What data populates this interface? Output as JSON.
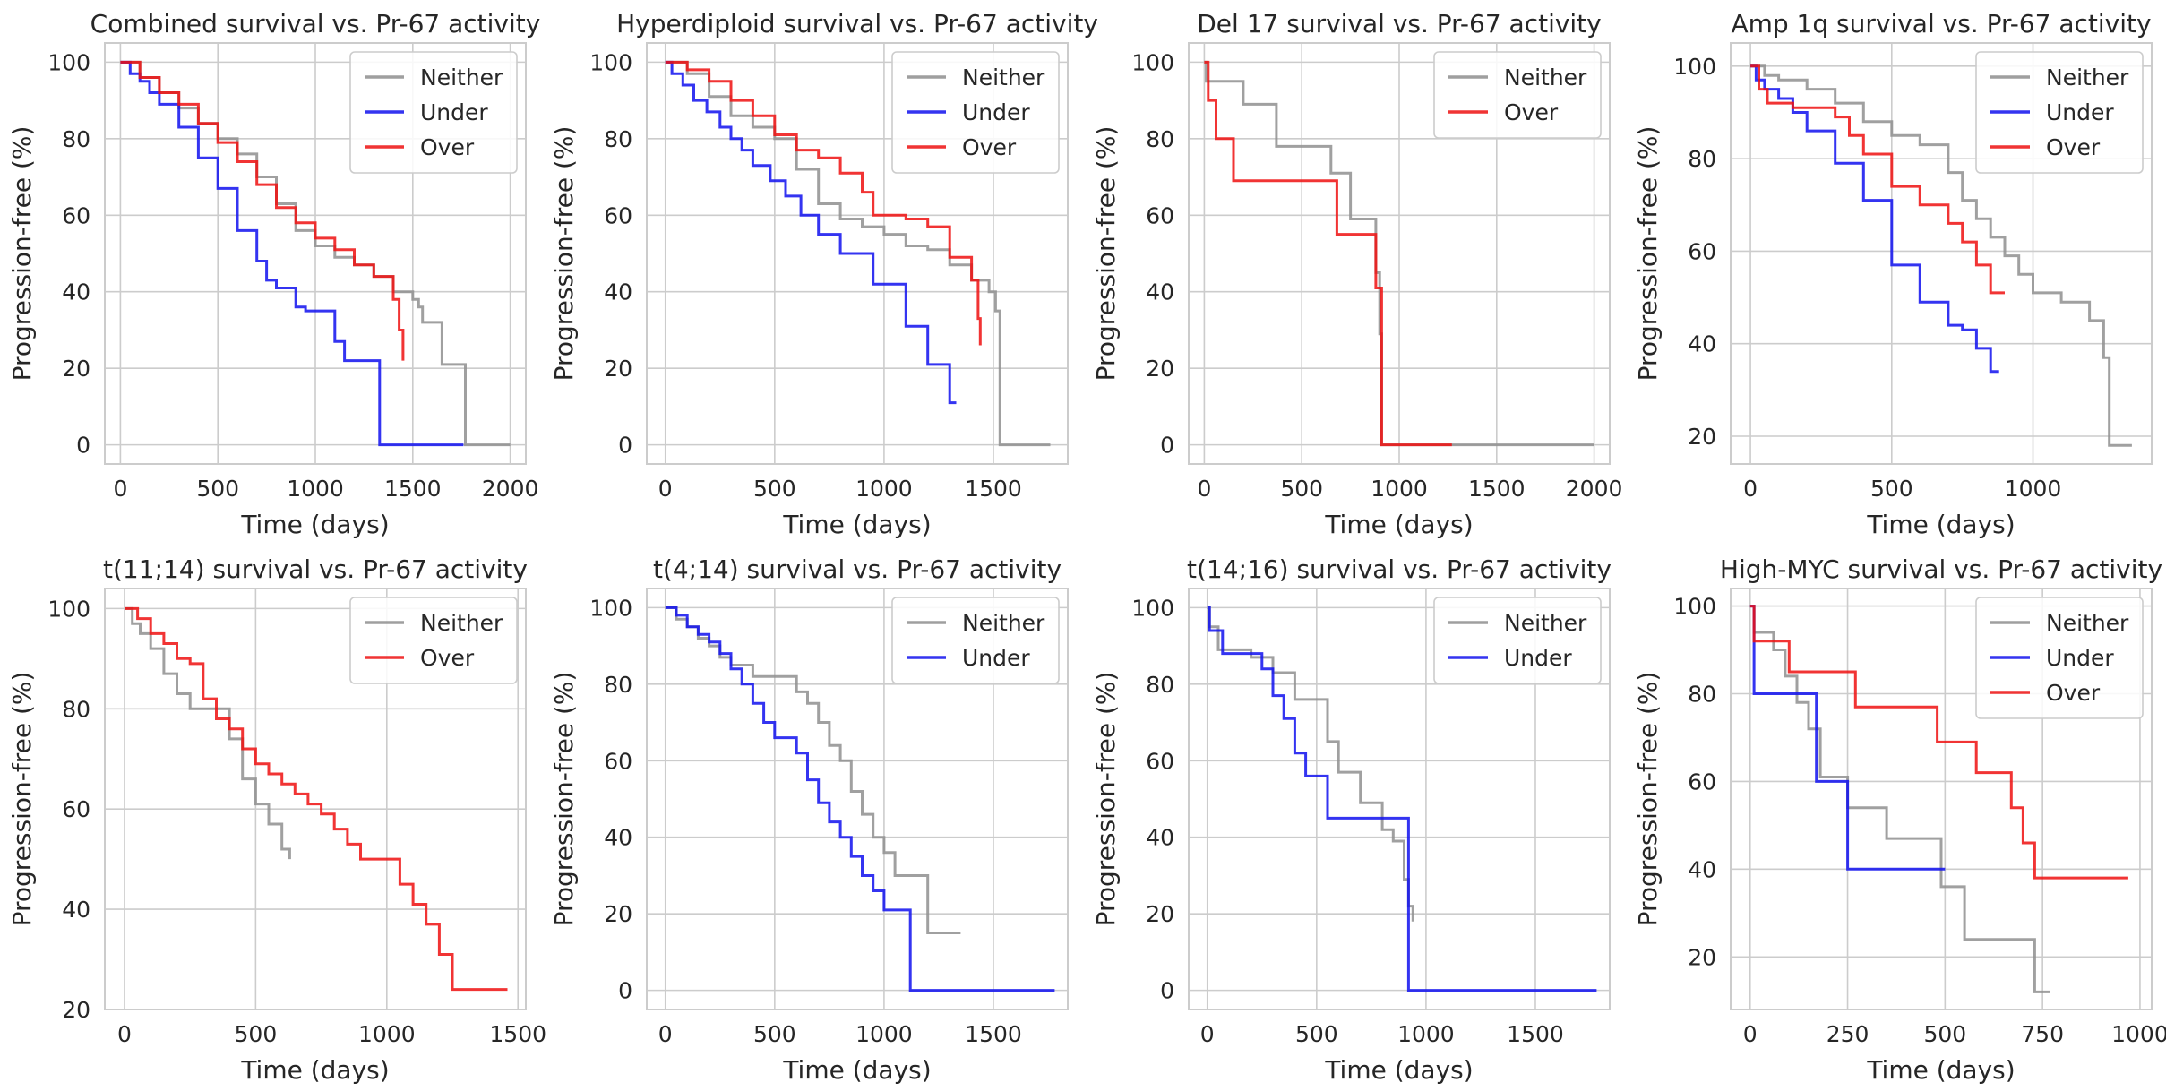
{
  "colors": {
    "Neither": "#8f8f8f",
    "Under": "#1111ee",
    "Over": "#ee1111"
  },
  "chart_data": [
    {
      "type": "line",
      "title": "Combined survival vs. Pr-67 activity",
      "xlabel": "Time (days)",
      "ylabel": "Progression-free (%)",
      "xlim": [
        -80,
        2080
      ],
      "ylim": [
        -5,
        105
      ],
      "xticks": [
        0,
        500,
        1000,
        1500,
        2000
      ],
      "yticks": [
        0,
        20,
        40,
        60,
        80,
        100
      ],
      "grid": true,
      "legend": "top-right",
      "series": [
        {
          "name": "Neither",
          "x": [
            0,
            100,
            200,
            300,
            400,
            500,
            600,
            700,
            800,
            900,
            1000,
            1100,
            1200,
            1300,
            1400,
            1500,
            1530,
            1550,
            1630,
            1650,
            1760,
            1770,
            2000
          ],
          "y": [
            100,
            96,
            92,
            88,
            84,
            80,
            76,
            70,
            63,
            56,
            52,
            49,
            47,
            44,
            40,
            38,
            36,
            32,
            32,
            21,
            21,
            0,
            0
          ]
        },
        {
          "name": "Under",
          "x": [
            0,
            50,
            100,
            150,
            200,
            300,
            400,
            500,
            600,
            700,
            750,
            800,
            900,
            950,
            1000,
            1050,
            1100,
            1150,
            1200,
            1250,
            1300,
            1320,
            1330,
            1760
          ],
          "y": [
            100,
            97,
            95,
            92,
            89,
            83,
            75,
            67,
            56,
            48,
            43,
            41,
            36,
            35,
            35,
            35,
            27,
            22,
            22,
            22,
            22,
            22,
            0,
            0
          ]
        },
        {
          "name": "Over",
          "x": [
            0,
            100,
            200,
            300,
            400,
            500,
            600,
            700,
            800,
            900,
            1000,
            1100,
            1200,
            1300,
            1400,
            1430,
            1450
          ],
          "y": [
            100,
            96,
            92,
            89,
            84,
            79,
            74,
            68,
            62,
            58,
            54,
            51,
            47,
            44,
            38,
            30,
            22
          ]
        }
      ]
    },
    {
      "type": "line",
      "title": "Hyperdiploid survival vs. Pr-67 activity",
      "xlabel": "Time (days)",
      "ylabel": "Progression-free (%)",
      "xlim": [
        -85,
        1840
      ],
      "ylim": [
        -5,
        105
      ],
      "xticks": [
        0,
        500,
        1000,
        1500
      ],
      "yticks": [
        0,
        20,
        40,
        60,
        80,
        100
      ],
      "grid": true,
      "legend": "top-right",
      "series": [
        {
          "name": "Neither",
          "x": [
            0,
            100,
            200,
            300,
            400,
            500,
            600,
            700,
            800,
            900,
            1000,
            1100,
            1200,
            1300,
            1400,
            1480,
            1500,
            1510,
            1530,
            1760
          ],
          "y": [
            100,
            97,
            91,
            86,
            83,
            80,
            72,
            63,
            59,
            57,
            55,
            52,
            51,
            47,
            43,
            40,
            40,
            35,
            0,
            0
          ]
        },
        {
          "name": "Under",
          "x": [
            0,
            30,
            80,
            130,
            190,
            250,
            300,
            350,
            400,
            480,
            550,
            620,
            700,
            800,
            950,
            1100,
            1200,
            1300,
            1330
          ],
          "y": [
            100,
            97,
            94,
            90,
            87,
            83,
            80,
            77,
            73,
            69,
            65,
            60,
            55,
            50,
            42,
            31,
            21,
            11,
            11
          ]
        },
        {
          "name": "Over",
          "x": [
            0,
            100,
            200,
            300,
            400,
            500,
            600,
            700,
            800,
            900,
            950,
            1000,
            1100,
            1200,
            1300,
            1400,
            1430,
            1440
          ],
          "y": [
            100,
            98,
            95,
            90,
            86,
            81,
            77,
            75,
            71,
            66,
            60,
            60,
            59,
            57,
            49,
            43,
            33,
            26
          ]
        }
      ]
    },
    {
      "type": "line",
      "title": "Del 17 survival vs. Pr-67 activity",
      "xlabel": "Time (days)",
      "ylabel": "Progression-free (%)",
      "xlim": [
        -80,
        2080
      ],
      "ylim": [
        -5,
        105
      ],
      "xticks": [
        0,
        500,
        1000,
        1500,
        2000
      ],
      "yticks": [
        0,
        20,
        40,
        60,
        80,
        100
      ],
      "grid": true,
      "legend": "top-right",
      "series": [
        {
          "name": "Neither",
          "x": [
            0,
            10,
            100,
            200,
            370,
            650,
            750,
            880,
            900,
            910,
            920,
            1270,
            2000
          ],
          "y": [
            100,
            95,
            95,
            89,
            78,
            71,
            59,
            45,
            29,
            0,
            0,
            0,
            0
          ]
        },
        {
          "name": "Over",
          "x": [
            0,
            20,
            60,
            150,
            300,
            500,
            680,
            880,
            900,
            910,
            1270
          ],
          "y": [
            100,
            90,
            80,
            69,
            69,
            69,
            55,
            41,
            41,
            0,
            0
          ]
        }
      ]
    },
    {
      "type": "line",
      "title": "Amp 1q survival vs. Pr-67 activity",
      "xlabel": "Time (days)",
      "ylabel": "Progression-free (%)",
      "xlim": [
        -70,
        1420
      ],
      "ylim": [
        14,
        105
      ],
      "xticks": [
        0,
        500,
        1000
      ],
      "yticks": [
        20,
        40,
        60,
        80,
        100
      ],
      "grid": true,
      "legend": "top-right",
      "series": [
        {
          "name": "Neither",
          "x": [
            0,
            50,
            100,
            200,
            300,
            400,
            500,
            600,
            700,
            750,
            800,
            850,
            900,
            950,
            1000,
            1100,
            1200,
            1250,
            1270,
            1300,
            1350
          ],
          "y": [
            100,
            98,
            97,
            95,
            92,
            88,
            85,
            83,
            77,
            71,
            67,
            63,
            59,
            55,
            51,
            49,
            45,
            37,
            18,
            18,
            18
          ]
        },
        {
          "name": "Under",
          "x": [
            0,
            20,
            50,
            100,
            150,
            200,
            300,
            400,
            500,
            600,
            700,
            750,
            800,
            850,
            880
          ],
          "y": [
            100,
            97,
            95,
            93,
            90,
            86,
            79,
            71,
            57,
            49,
            44,
            43,
            39,
            34,
            34
          ]
        },
        {
          "name": "Over",
          "x": [
            0,
            30,
            60,
            150,
            250,
            300,
            350,
            400,
            500,
            600,
            650,
            700,
            750,
            800,
            850,
            900
          ],
          "y": [
            100,
            95,
            92,
            91,
            91,
            89,
            85,
            81,
            74,
            70,
            70,
            66,
            62,
            57,
            51,
            51
          ]
        }
      ]
    },
    {
      "type": "line",
      "title": "t(11;14) survival vs. Pr-67 activity",
      "xlabel": "Time (days)",
      "ylabel": "Progression-free (%)",
      "xlim": [
        -75,
        1530
      ],
      "ylim": [
        20,
        104
      ],
      "xticks": [
        0,
        500,
        1000,
        1500
      ],
      "yticks": [
        20,
        40,
        60,
        80,
        100
      ],
      "grid": true,
      "legend": "top-right",
      "series": [
        {
          "name": "Neither",
          "x": [
            0,
            30,
            60,
            100,
            150,
            200,
            250,
            350,
            400,
            450,
            500,
            550,
            600,
            630
          ],
          "y": [
            100,
            97,
            95,
            92,
            87,
            83,
            80,
            80,
            74,
            66,
            61,
            57,
            52,
            50
          ]
        },
        {
          "name": "Over",
          "x": [
            0,
            50,
            100,
            150,
            200,
            250,
            300,
            350,
            400,
            450,
            500,
            550,
            600,
            650,
            700,
            750,
            800,
            850,
            900,
            1000,
            1050,
            1100,
            1150,
            1200,
            1250,
            1300,
            1460
          ],
          "y": [
            100,
            98,
            95,
            93,
            90,
            89,
            82,
            78,
            76,
            72,
            69,
            67,
            65,
            63,
            61,
            59,
            56,
            53,
            50,
            50,
            45,
            41,
            37,
            31,
            24,
            24,
            24
          ]
        }
      ]
    },
    {
      "type": "line",
      "title": "t(4;14) survival vs. Pr-67 activity",
      "xlabel": "Time (days)",
      "ylabel": "Progression-free (%)",
      "xlim": [
        -85,
        1840
      ],
      "ylim": [
        -5,
        105
      ],
      "xticks": [
        0,
        500,
        1000,
        1500
      ],
      "yticks": [
        0,
        20,
        40,
        60,
        80,
        100
      ],
      "grid": true,
      "legend": "top-right",
      "series": [
        {
          "name": "Neither",
          "x": [
            0,
            50,
            100,
            150,
            200,
            250,
            300,
            400,
            500,
            550,
            600,
            650,
            700,
            750,
            800,
            850,
            900,
            950,
            1000,
            1050,
            1100,
            1150,
            1200,
            1350
          ],
          "y": [
            100,
            97,
            95,
            92,
            90,
            87,
            85,
            82,
            82,
            82,
            78,
            75,
            70,
            64,
            60,
            52,
            46,
            40,
            36,
            30,
            30,
            30,
            15,
            15
          ]
        },
        {
          "name": "Under",
          "x": [
            0,
            50,
            100,
            150,
            200,
            250,
            300,
            350,
            400,
            450,
            500,
            550,
            600,
            650,
            700,
            750,
            800,
            850,
            900,
            950,
            1000,
            1050,
            1100,
            1120,
            1780
          ],
          "y": [
            100,
            98,
            95,
            93,
            91,
            88,
            84,
            80,
            75,
            70,
            66,
            66,
            62,
            55,
            49,
            44,
            40,
            35,
            30,
            26,
            21,
            21,
            21,
            0,
            0
          ]
        }
      ]
    },
    {
      "type": "line",
      "title": "t(14;16) survival vs. Pr-67 activity",
      "xlabel": "Time (days)",
      "ylabel": "Progression-free (%)",
      "xlim": [
        -85,
        1840
      ],
      "ylim": [
        -5,
        105
      ],
      "xticks": [
        0,
        500,
        1000,
        1500
      ],
      "yticks": [
        0,
        20,
        40,
        60,
        80,
        100
      ],
      "grid": true,
      "legend": "top-right",
      "series": [
        {
          "name": "Neither",
          "x": [
            0,
            10,
            50,
            100,
            200,
            300,
            400,
            500,
            550,
            600,
            700,
            750,
            800,
            850,
            900,
            920,
            940
          ],
          "y": [
            100,
            95,
            89,
            89,
            87,
            83,
            76,
            76,
            65,
            57,
            49,
            49,
            42,
            39,
            29,
            22,
            18
          ]
        },
        {
          "name": "Under",
          "x": [
            0,
            10,
            70,
            150,
            250,
            300,
            350,
            400,
            450,
            500,
            550,
            600,
            700,
            800,
            900,
            920,
            1780
          ],
          "y": [
            100,
            94,
            88,
            88,
            84,
            77,
            71,
            62,
            56,
            56,
            45,
            45,
            45,
            45,
            45,
            0,
            0
          ]
        }
      ]
    },
    {
      "type": "line",
      "title": "High-MYC survival vs. Pr-67 activity",
      "xlabel": "Time (days)",
      "ylabel": "Progression-free (%)",
      "xlim": [
        -50,
        1030
      ],
      "ylim": [
        8,
        104
      ],
      "xticks": [
        0,
        250,
        500,
        750,
        1000
      ],
      "yticks": [
        20,
        40,
        60,
        80,
        100
      ],
      "grid": true,
      "legend": "top-right",
      "series": [
        {
          "name": "Neither",
          "x": [
            0,
            10,
            60,
            90,
            120,
            150,
            180,
            250,
            350,
            490,
            550,
            680,
            730,
            770
          ],
          "y": [
            100,
            94,
            90,
            84,
            78,
            72,
            61,
            54,
            47,
            36,
            24,
            24,
            12,
            12
          ]
        },
        {
          "name": "Under",
          "x": [
            0,
            10,
            170,
            250,
            500
          ],
          "y": [
            100,
            80,
            60,
            40,
            40
          ]
        },
        {
          "name": "Over",
          "x": [
            0,
            10,
            100,
            170,
            270,
            380,
            480,
            580,
            670,
            700,
            730,
            970
          ],
          "y": [
            100,
            92,
            85,
            85,
            77,
            77,
            69,
            62,
            54,
            46,
            38,
            38
          ]
        }
      ]
    }
  ]
}
